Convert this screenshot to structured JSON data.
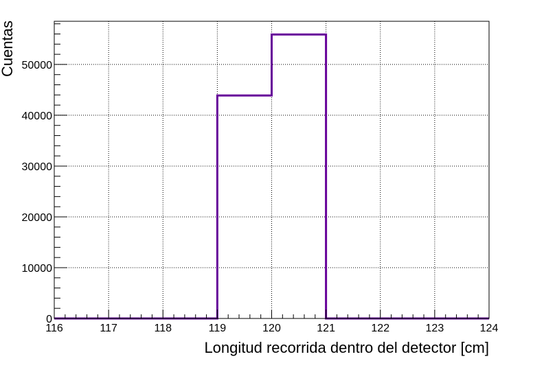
{
  "chart_data": {
    "type": "histogram",
    "xlabel": "Longitud recorrida dentro del detector [cm]",
    "ylabel": "Cuentas",
    "xlim": [
      116,
      124
    ],
    "ylim": [
      0,
      58500
    ],
    "grid": true,
    "line_color": "#660099",
    "bins": [
      {
        "low": 116,
        "high": 117,
        "count": 0
      },
      {
        "low": 117,
        "high": 118,
        "count": 0
      },
      {
        "low": 118,
        "high": 119,
        "count": 0
      },
      {
        "low": 119,
        "high": 120,
        "count": 43900
      },
      {
        "low": 120,
        "high": 121,
        "count": 55900
      },
      {
        "low": 121,
        "high": 122,
        "count": 0
      },
      {
        "low": 122,
        "high": 123,
        "count": 0
      },
      {
        "low": 123,
        "high": 124,
        "count": 0
      }
    ],
    "x_ticks": [
      "116",
      "117",
      "118",
      "119",
      "120",
      "121",
      "122",
      "123",
      "124"
    ],
    "y_ticks": [
      "0",
      "10000",
      "20000",
      "30000",
      "40000",
      "50000"
    ]
  }
}
